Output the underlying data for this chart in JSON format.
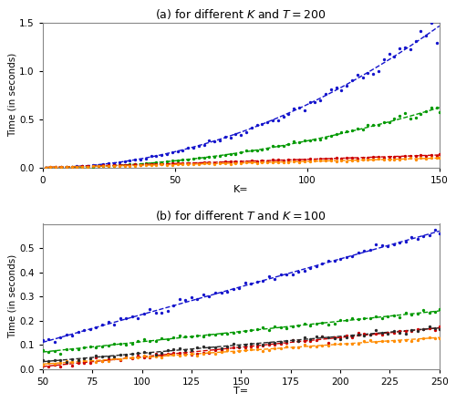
{
  "panel_a": {
    "title": "(a) for different $K$ and $T = 200$",
    "xlabel": "K=",
    "ylabel": "Time (in seconds)",
    "xlim": [
      0,
      150
    ],
    "ylim": [
      0,
      1.5
    ],
    "yticks": [
      0.0,
      0.5,
      1.0,
      1.5
    ],
    "xticks": [
      0,
      50,
      100,
      150
    ],
    "K_vals": [
      1,
      3,
      5,
      7,
      9,
      11,
      13,
      15,
      17,
      19,
      21,
      23,
      25,
      27,
      29,
      31,
      33,
      35,
      37,
      39,
      41,
      43,
      45,
      47,
      49,
      51,
      53,
      55,
      57,
      59,
      61,
      63,
      65,
      67,
      69,
      71,
      73,
      75,
      77,
      79,
      81,
      83,
      85,
      87,
      89,
      91,
      93,
      95,
      97,
      99,
      101,
      103,
      105,
      107,
      109,
      111,
      113,
      115,
      117,
      119,
      121,
      123,
      125,
      127,
      129,
      131,
      133,
      135,
      137,
      139,
      141,
      143,
      145,
      147,
      149,
      150
    ]
  },
  "panel_b": {
    "title": "(b) for different $T$ and $K = 100$",
    "xlabel": "T=",
    "ylabel": "Time (in seconds)",
    "xlim": [
      50,
      250
    ],
    "ylim": [
      0.0,
      0.6
    ],
    "yticks": [
      0.0,
      0.1,
      0.2,
      0.3,
      0.4,
      0.5
    ],
    "xticks": [
      50,
      75,
      100,
      125,
      150,
      175,
      200,
      225,
      250
    ],
    "T_vals": [
      50,
      53,
      56,
      59,
      62,
      65,
      68,
      71,
      74,
      77,
      80,
      83,
      86,
      89,
      92,
      95,
      98,
      101,
      104,
      107,
      110,
      113,
      116,
      119,
      122,
      125,
      128,
      131,
      134,
      137,
      140,
      143,
      146,
      149,
      152,
      155,
      158,
      161,
      164,
      167,
      170,
      173,
      176,
      179,
      182,
      185,
      188,
      191,
      194,
      197,
      200,
      203,
      206,
      209,
      212,
      215,
      218,
      221,
      224,
      227,
      230,
      233,
      236,
      239,
      242,
      245,
      248,
      250
    ]
  },
  "colors": {
    "blue": "#1414cc",
    "green": "#009900",
    "red": "#cc0000",
    "orange": "#ff8c00",
    "black": "#2a2a2a"
  },
  "background": "#ffffff"
}
